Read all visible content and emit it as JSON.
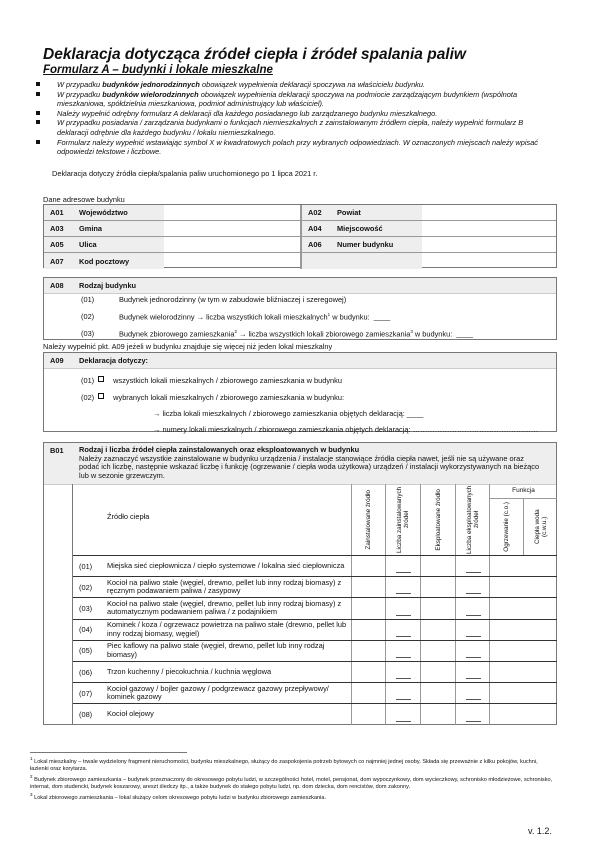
{
  "title": "Deklaracja dotycząca źródeł ciepła i źródeł spalania paliw",
  "subtitle": "Formularz A – budynki i lokale mieszkalne",
  "bullets": [
    {
      "pre": "W przypadku ",
      "bold": "budynków jednorodzinnych",
      "post": " obowiązek wypełnienia deklaracji spoczywa na właścicielu budynku."
    },
    {
      "pre": "W przypadku ",
      "bold": "budynków wielorodzinnych",
      "post": " obowiązek wypełnienia deklaracji spoczywa na podmiocie zarządzającym budynkiem (wspólnota mieszkaniowa, spółdzielnia mieszkaniowa, podmiot administrujący lub właściciel)."
    },
    {
      "pre": "Należy wypełnić odrębny formularz A deklaracji dla każdego posiadanego lub zarządzanego budynku mieszkalnego.",
      "bold": "",
      "post": ""
    },
    {
      "pre": "W przypadku posiadania / zarządzania budynkami o funkcjach niemieszkalnych z zainstalowanym źródłem ciepła, należy wypełnić formularz B deklaracji odrębnie dla każdego budynku / lokalu niemieszkalnego.",
      "bold": "",
      "post": ""
    },
    {
      "pre": "Formularz należy wypełnić wstawiając symbol X w kwadratowych polach przy wybranych odpowiedziach. W oznaczonych miejscach należy wpisać odpowiedzi tekstowe i liczbowe.",
      "bold": "",
      "post": ""
    }
  ],
  "decl_note": "Deklaracja dotyczy źródła ciepła/spalania paliw uruchomionego po 1 lipca 2021 r.",
  "address": {
    "label": "Dane adresowe budynku",
    "fields": [
      {
        "code": "A01",
        "label": "Województwo",
        "value": ""
      },
      {
        "code": "A02",
        "label": "Powiat",
        "value": ""
      },
      {
        "code": "A03",
        "label": "Gmina",
        "value": ""
      },
      {
        "code": "A04",
        "label": "Miejscowość",
        "value": ""
      },
      {
        "code": "A05",
        "label": "Ulica",
        "value": ""
      },
      {
        "code": "A06",
        "label": "Numer budynku",
        "value": ""
      },
      {
        "code": "A07",
        "label": "Kod pocztowy",
        "value": ""
      }
    ]
  },
  "a08": {
    "code": "A08",
    "title": "Rodzaj budynku",
    "options": [
      {
        "n": "(01)",
        "text": "Budynek jednorodzinny (w tym w zabudowie bliźniaczej i szeregowej)",
        "blank": ""
      },
      {
        "n": "(02)",
        "text": "Budynek wielorodzinny → liczba wszystkich lokali mieszkalnych",
        "sup": "1",
        "tail": " w budynku:",
        "blank": "____"
      },
      {
        "n": "(03)",
        "text": "Budynek zbiorowego zamieszkania",
        "sup": "2",
        "mid": " → liczba wszystkich lokali zbiorowego zamieszkania",
        "sup2": "3",
        "tail": " w budynku:",
        "blank": "____"
      }
    ]
  },
  "a09_note": "Należy wypełnić pkt. A09 jeżeli w budynku znajduje się więcej niż jeden lokal mieszkalny",
  "a09": {
    "code": "A09",
    "title": "Deklaracja dotyczy:",
    "options": [
      {
        "n": "(01)",
        "text": "wszystkich lokali mieszkalnych / zbiorowego zamieszkania w budynku",
        "checked": false
      },
      {
        "n": "(02)",
        "text": "wybranych lokali mieszkalnych / zbiorowego zamieszkania w budynku:",
        "checked": false
      }
    ],
    "sub": [
      "→ liczba lokali mieszkalnych  / zbiorowego zamieszkania objętych deklaracją:  ____",
      "→ numery lokali mieszkalnych / zbiorowego zamieszkania objętych deklaracją:  ……………………………………………"
    ]
  },
  "b01": {
    "code": "B01",
    "title": "Rodzaj i liczba źródeł ciepła zainstalowanych oraz eksploatowanych w budynku",
    "desc": "Należy zaznaczyć wszystkie zainstalowane w budynku urządzenia / instalacje stanowiące źródła ciepła nawet, jeśli nie są używane oraz podać ich liczbę, następnie wskazać liczbę i funkcję (ogrzewanie / ciepła woda użytkowa) urządzeń / instalacji wykorzystywanych na bieżąco lub w sezonie grzewczym.",
    "headers": {
      "source": "Źródło ciepła",
      "installed": "Zainstalowane źródło",
      "installed_count": "Liczba zainstalowanych źródeł",
      "operated": "Eksploatowane źródło",
      "operated_count": "Liczba eksploatowanych źródeł",
      "function": "Funkcja",
      "heating": "Ogrzewanie (c.o.)",
      "hot_water": "Ciepła woda (c.w.u.)"
    },
    "rows": [
      {
        "n": "(01)",
        "text": "Miejska sieć ciepłownicza / ciepło systemowe / lokalna sieć ciepłownicza"
      },
      {
        "n": "(02)",
        "text": "Kocioł na paliwo stałe (węgiel, drewno, pellet lub inny rodzaj biomasy) z ręcznym podawaniem paliwa / zasypowy"
      },
      {
        "n": "(03)",
        "text": "Kocioł na paliwo stałe (węgiel, drewno, pellet lub inny rodzaj biomasy) z automatycznym podawaniem paliwa / z podajnikiem"
      },
      {
        "n": "(04)",
        "text": "Kominek / koza / ogrzewacz powietrza na paliwo stałe (drewno, pellet lub inny rodzaj biomasy, węgiel)"
      },
      {
        "n": "(05)",
        "text": "Piec kaflowy na paliwo stałe (węgiel, drewno, pellet lub inny rodzaj biomasy)"
      },
      {
        "n": "(06)",
        "text": "Trzon kuchenny / piecokuchnia / kuchnia węglowa"
      },
      {
        "n": "(07)",
        "text": "Kocioł gazowy / bojler gazowy / podgrzewacz gazowy przepływowy/ kominek gazowy"
      },
      {
        "n": "(08)",
        "text": "Kocioł olejowy"
      }
    ]
  },
  "footnotes": [
    {
      "n": "1",
      "text": "Lokal mieszkalny – trwale wydzielony fragment nieruchomości, budynku mieszkalnego, służący do zaspokojenia potrzeb bytowych co najmniej jednej osoby. Składa się przeważnie z kilku pokojów, kuchni, łazienki oraz korytarza."
    },
    {
      "n": "2",
      "text": "Budynek zbiorowego zamieszkania  –  budynek przeznaczony do okresowego pobytu ludzi, w szczególności hotel, motel, pensjonat, dom wypoczynkowy, dom wycieczkowy, schronisko młodzieżowe, schronisko, internat, dom studencki, budynek koszarowy, areszt śledczy itp., a także budynek do stałego pobytu ludzi, np. dom dziecka, dom rencistów, dom zakonny."
    },
    {
      "n": "3",
      "text": "Lokal zbiorowego zamieszkania – lokal służący celom okresowego pobytu ludzi w budynku zbiorowego zamieszkania."
    }
  ],
  "version": "v. 1.2."
}
